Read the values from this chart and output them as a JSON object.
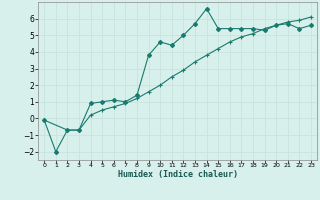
{
  "xlabel": "Humidex (Indice chaleur)",
  "bg_color": "#d8f0ec",
  "line_color": "#1a7a6e",
  "grid_color": "#c8e4de",
  "xlim": [
    -0.5,
    23.5
  ],
  "ylim": [
    -2.5,
    7.0
  ],
  "yticks": [
    -2,
    -1,
    0,
    1,
    2,
    3,
    4,
    5,
    6
  ],
  "xticks": [
    0,
    1,
    2,
    3,
    4,
    5,
    6,
    7,
    8,
    9,
    10,
    11,
    12,
    13,
    14,
    15,
    16,
    17,
    18,
    19,
    20,
    21,
    22,
    23
  ],
  "curve1_x": [
    0,
    1,
    2,
    3,
    4,
    5,
    6,
    7,
    8,
    9,
    10,
    11,
    12,
    13,
    14,
    15,
    16,
    17,
    18,
    19,
    20,
    21,
    22,
    23
  ],
  "curve1_y": [
    -0.1,
    -2.0,
    -0.7,
    -0.7,
    0.9,
    1.0,
    1.1,
    1.0,
    1.4,
    3.8,
    4.6,
    4.4,
    5.0,
    5.7,
    6.6,
    5.4,
    5.4,
    5.4,
    5.4,
    5.3,
    5.6,
    5.7,
    5.4,
    5.6
  ],
  "curve2_x": [
    0,
    2,
    3,
    4,
    5,
    6,
    7,
    8,
    9,
    10,
    11,
    12,
    13,
    14,
    15,
    16,
    17,
    18,
    19,
    20,
    21,
    22,
    23
  ],
  "curve2_y": [
    -0.1,
    -0.7,
    -0.7,
    0.2,
    0.5,
    0.7,
    0.9,
    1.2,
    1.6,
    2.0,
    2.5,
    2.9,
    3.4,
    3.8,
    4.2,
    4.6,
    4.9,
    5.1,
    5.4,
    5.6,
    5.8,
    5.9,
    6.1
  ]
}
